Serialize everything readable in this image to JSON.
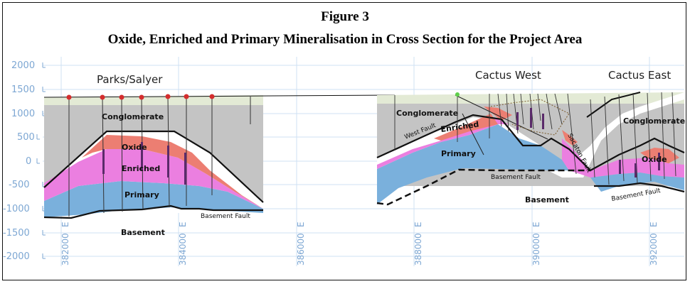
{
  "figure": {
    "title": "Figure 3",
    "subtitle": "Oxide, Enriched and Primary Mineralisation in Cross Section for the Project Area"
  },
  "y_axis": {
    "ticks": [
      "2000",
      "1500",
      "1000",
      "500",
      "0",
      "-500",
      "-1000",
      "-1500",
      "-2000"
    ]
  },
  "x_axis": {
    "ticks": [
      "382000",
      "384000",
      "386000",
      "388000",
      "390000",
      "392000"
    ],
    "suffix": "E"
  },
  "areas": {
    "parks": "Parks/Salyer",
    "cactus_west": "Cactus West",
    "cactus_east": "Cactus East"
  },
  "units": {
    "conglomerate": "Conglomerate",
    "oxide": "Oxide",
    "enriched": "Enriched",
    "primary": "Primary",
    "basement": "Basement"
  },
  "faults": {
    "basement": "Basement Fault",
    "west": "West Fault",
    "sacaton": "Sacaton Fault"
  },
  "colors": {
    "axis_text": "#7da7d3",
    "grid": "#cfe1f3",
    "cover": "#e3ead5",
    "conglomerate": "#c4c4c4",
    "oxide": "#ec7e72",
    "enriched": "#eb7fe0",
    "primary": "#7ab0dc",
    "drill_collar": "#d42d2d",
    "collar_green": "#5fd04a"
  }
}
